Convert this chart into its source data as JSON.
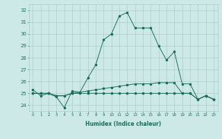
{
  "xlabel": "Humidex (Indice chaleur)",
  "x": [
    0,
    1,
    2,
    3,
    4,
    5,
    6,
    7,
    8,
    9,
    10,
    11,
    12,
    13,
    14,
    15,
    16,
    17,
    18,
    19,
    20,
    21,
    22,
    23
  ],
  "line1": [
    25.3,
    24.8,
    25.0,
    24.7,
    23.8,
    25.2,
    25.1,
    26.3,
    27.4,
    29.5,
    30.0,
    31.5,
    31.8,
    30.5,
    30.5,
    30.5,
    29.0,
    27.8,
    28.5,
    25.8,
    25.8,
    24.5,
    24.8,
    24.5
  ],
  "line2": [
    25.0,
    25.0,
    25.0,
    24.8,
    24.8,
    25.0,
    25.1,
    25.2,
    25.3,
    25.4,
    25.5,
    25.6,
    25.7,
    25.8,
    25.8,
    25.8,
    25.9,
    25.9,
    25.9,
    25.0,
    25.0,
    24.5,
    24.8,
    24.5
  ],
  "line3": [
    25.0,
    25.0,
    25.0,
    24.8,
    24.8,
    25.0,
    25.0,
    25.0,
    25.0,
    25.0,
    25.0,
    25.0,
    25.0,
    25.0,
    25.0,
    25.0,
    25.0,
    25.0,
    25.0,
    25.0,
    25.0,
    24.5,
    24.8,
    24.5
  ],
  "line_color": "#1a6b5a",
  "bg_color": "#cce9e8",
  "grid_color": "#aacccc",
  "ylim": [
    23.5,
    32.5
  ],
  "yticks": [
    24,
    25,
    26,
    27,
    28,
    29,
    30,
    31,
    32
  ],
  "xticks": [
    0,
    1,
    2,
    3,
    4,
    5,
    6,
    7,
    8,
    9,
    10,
    11,
    12,
    13,
    14,
    15,
    16,
    17,
    18,
    19,
    20,
    21,
    22,
    23
  ]
}
